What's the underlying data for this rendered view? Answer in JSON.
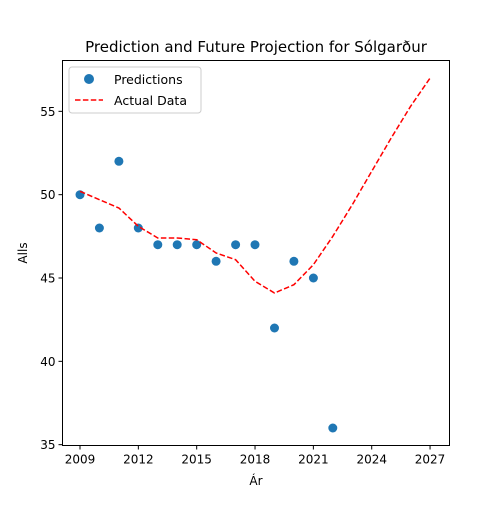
{
  "chart_data": {
    "type": "scatter",
    "title": "Prediction and Future Projection for Sólgarður",
    "xlabel": "Ár",
    "ylabel": "Alls",
    "xlim": [
      2008.1,
      2028.0
    ],
    "ylim": [
      34.95,
      58.05
    ],
    "xticks": [
      2009,
      2012,
      2015,
      2018,
      2021,
      2024,
      2027
    ],
    "yticks": [
      35,
      40,
      45,
      50,
      55
    ],
    "grid": false,
    "legend": "top-left",
    "series": [
      {
        "name": "Predictions",
        "kind": "scatter",
        "color": "#1f77b4",
        "x": [
          2009,
          2010,
          2011,
          2012,
          2013,
          2014,
          2015,
          2016,
          2017,
          2018,
          2019,
          2020,
          2021,
          2022
        ],
        "y": [
          50,
          48,
          52,
          48,
          47,
          47,
          47,
          46,
          47,
          47,
          42,
          46,
          45,
          36
        ]
      },
      {
        "name": "Actual Data",
        "kind": "line",
        "style": "dashed",
        "color": "#ff0000",
        "x": [
          2009,
          2010,
          2011,
          2012,
          2013,
          2014,
          2015,
          2016,
          2017,
          2018,
          2019,
          2020,
          2021,
          2022,
          2023,
          2024,
          2025,
          2026,
          2027
        ],
        "y": [
          50.2,
          49.7,
          49.2,
          48.1,
          47.4,
          47.4,
          47.3,
          46.5,
          46.1,
          44.8,
          44.1,
          44.6,
          45.8,
          47.5,
          49.4,
          51.4,
          53.4,
          55.3,
          57.0
        ]
      }
    ]
  }
}
